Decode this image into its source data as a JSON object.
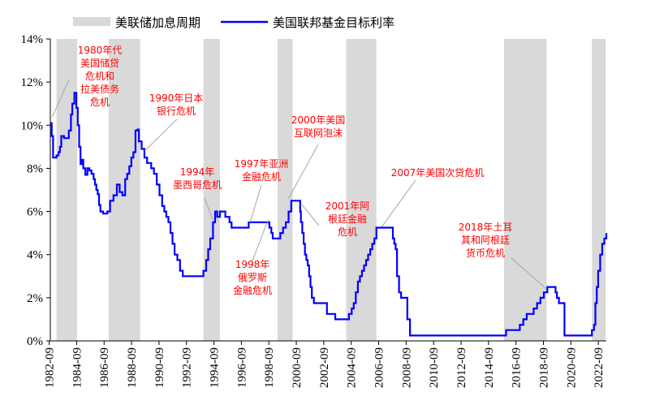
{
  "colors": {
    "shade": "#d9d9d9",
    "line": "#0000ff",
    "annotation": "#ff0000",
    "leader": "#a6a6a6",
    "axis": "#000000"
  },
  "legend": {
    "shade_label": "美联储加息周期",
    "line_label": "美国联邦基金目标利率"
  },
  "chart_data": {
    "type": "line",
    "title": "",
    "xlabel": "",
    "ylabel": "",
    "ylim": [
      0,
      14
    ],
    "xlim": [
      1982.75,
      2023.25
    ],
    "y_ticks": [
      0,
      2,
      4,
      6,
      8,
      10,
      12,
      14
    ],
    "y_tick_labels": [
      "0%",
      "2%",
      "4%",
      "6%",
      "8%",
      "10%",
      "12%",
      "14%"
    ],
    "x_tick_labels": [
      "1982-09",
      "1984-09",
      "1986-09",
      "1988-09",
      "1990-09",
      "1992-09",
      "1994-09",
      "1996-09",
      "1998-09",
      "2000-09",
      "2002-09",
      "2004-09",
      "2006-09",
      "2008-09",
      "2010-09",
      "2012-09",
      "2014-09",
      "2016-09",
      "2018-09",
      "2020-09",
      "2022-09"
    ],
    "hike_periods": [
      [
        1983.2,
        1984.7
      ],
      [
        1987.0,
        1989.3
      ],
      [
        1993.9,
        1995.1
      ],
      [
        1999.3,
        2000.4
      ],
      [
        2004.3,
        2006.5
      ],
      [
        2015.8,
        2018.9
      ],
      [
        2022.2,
        2023.2
      ]
    ],
    "series": [
      {
        "name": "美国联邦基金目标利率",
        "step": true,
        "x": [
          1982.75,
          1982.85,
          1982.95,
          1983.2,
          1983.35,
          1983.45,
          1983.55,
          1983.75,
          1983.95,
          1984.1,
          1984.25,
          1984.35,
          1984.5,
          1984.65,
          1984.75,
          1984.85,
          1984.95,
          1985.05,
          1985.15,
          1985.3,
          1985.45,
          1985.6,
          1985.75,
          1985.9,
          1986.0,
          1986.1,
          1986.2,
          1986.3,
          1986.4,
          1986.6,
          1986.9,
          1987.1,
          1987.35,
          1987.6,
          1987.8,
          1988.0,
          1988.2,
          1988.35,
          1988.5,
          1988.65,
          1988.8,
          1988.95,
          1989.1,
          1989.2,
          1989.4,
          1989.6,
          1989.8,
          1990.1,
          1990.3,
          1990.5,
          1990.7,
          1990.9,
          1991.05,
          1991.2,
          1991.35,
          1991.5,
          1991.65,
          1991.8,
          1992.0,
          1992.2,
          1992.4,
          1993.9,
          1994.1,
          1994.25,
          1994.4,
          1994.6,
          1994.75,
          1994.9,
          1995.1,
          1995.5,
          1995.8,
          1995.95,
          1996.1,
          1997.2,
          1998.7,
          1998.85,
          1998.95,
          1999.5,
          1999.7,
          1999.9,
          2000.1,
          2000.3,
          2000.4,
          2000.95,
          2001.0,
          2001.1,
          2001.2,
          2001.3,
          2001.4,
          2001.5,
          2001.6,
          2001.7,
          2001.8,
          2001.95,
          2002.9,
          2003.5,
          2004.5,
          2004.7,
          2004.85,
          2005.0,
          2005.15,
          2005.3,
          2005.45,
          2005.6,
          2005.75,
          2005.9,
          2006.05,
          2006.2,
          2006.35,
          2006.5,
          2007.7,
          2007.8,
          2007.9,
          2008.0,
          2008.05,
          2008.15,
          2008.3,
          2008.75,
          2008.95,
          2015.95,
          2016.95,
          2017.2,
          2017.45,
          2017.95,
          2018.2,
          2018.45,
          2018.7,
          2018.95,
          2019.55,
          2019.65,
          2019.8,
          2020.2,
          2022.2,
          2022.35,
          2022.45,
          2022.55,
          2022.65,
          2022.8,
          2022.95,
          2023.1,
          2023.25
        ],
        "y": [
          10.1,
          9.5,
          8.5,
          8.6,
          8.75,
          9.0,
          9.5,
          9.4,
          9.4,
          9.75,
          10.5,
          11.0,
          11.5,
          10.8,
          10.0,
          9.0,
          8.2,
          8.4,
          8.0,
          7.7,
          8.0,
          7.9,
          7.75,
          7.5,
          7.25,
          7.0,
          6.8,
          6.3,
          6.0,
          5.9,
          6.0,
          6.5,
          6.75,
          7.25,
          6.9,
          6.75,
          7.5,
          7.75,
          8.1,
          8.5,
          8.75,
          9.75,
          9.8,
          9.25,
          8.9,
          8.5,
          8.25,
          8.0,
          7.75,
          7.25,
          6.75,
          6.25,
          6.0,
          5.75,
          5.5,
          5.0,
          4.5,
          4.0,
          3.75,
          3.25,
          3.0,
          3.25,
          3.75,
          4.25,
          4.75,
          5.5,
          6.0,
          5.75,
          6.0,
          5.75,
          5.5,
          5.25,
          5.25,
          5.5,
          5.25,
          5.0,
          4.75,
          5.0,
          5.25,
          5.5,
          6.0,
          6.5,
          6.5,
          6.0,
          5.5,
          5.0,
          4.5,
          4.0,
          3.75,
          3.5,
          3.0,
          2.5,
          2.0,
          1.75,
          1.25,
          1.0,
          1.25,
          1.5,
          1.75,
          2.25,
          2.75,
          3.0,
          3.25,
          3.5,
          3.75,
          4.0,
          4.25,
          4.5,
          4.75,
          5.25,
          4.75,
          4.5,
          4.25,
          3.0,
          3.0,
          2.25,
          2.0,
          1.0,
          0.25,
          0.5,
          0.75,
          1.0,
          1.25,
          1.5,
          1.75,
          2.0,
          2.25,
          2.5,
          2.25,
          2.0,
          1.75,
          0.25,
          0.5,
          0.75,
          1.75,
          2.5,
          3.25,
          4.0,
          4.5,
          4.75,
          5.0
        ]
      }
    ],
    "annotations": [
      {
        "lines": [
          "1980年代",
          "美国储贷",
          "危机和",
          "拉美债务",
          "危机"
        ],
        "point": [
          1982.9,
          10.4
        ]
      },
      {
        "lines": [
          "1990年日本",
          "银行危机"
        ],
        "point": [
          1989.6,
          8.8
        ]
      },
      {
        "lines": [
          "1994年",
          "墨西哥危机"
        ],
        "point": [
          1994.6,
          5.6
        ]
      },
      {
        "lines": [
          "1997年亚洲",
          "金融危机"
        ],
        "point": [
          1997.3,
          5.5
        ]
      },
      {
        "lines": [
          "1998年",
          "俄罗斯",
          "金融危机"
        ],
        "point": [
          1998.6,
          5.6
        ]
      },
      {
        "lines": [
          "2000年美国",
          "互联网泡沫"
        ],
        "point": [
          2000.1,
          6.6
        ]
      },
      {
        "lines": [
          "2001年阿",
          "根廷金融",
          "危机"
        ],
        "point": [
          2001.1,
          6.3
        ]
      },
      {
        "lines": [
          "2007年美国次贷危机"
        ],
        "point": [
          2006.9,
          5.3
        ]
      },
      {
        "lines": [
          "2018年土耳",
          "其和阿根廷",
          "货币危机"
        ],
        "point": [
          2018.9,
          2.4
        ]
      }
    ]
  }
}
